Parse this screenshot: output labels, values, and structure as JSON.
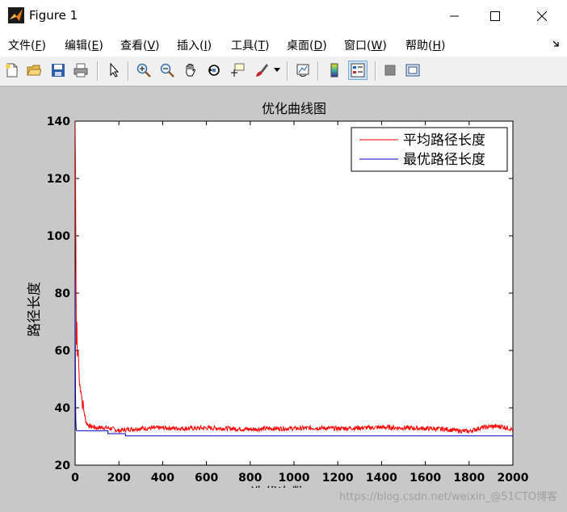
{
  "window": {
    "title": "Figure 1"
  },
  "menu": [
    {
      "label": "文件(",
      "key": "F",
      "end": ")"
    },
    {
      "label": "编辑(",
      "key": "E",
      "end": ")"
    },
    {
      "label": "查看(",
      "key": "V",
      "end": ")"
    },
    {
      "label": "插入(",
      "key": "I",
      "end": ")"
    },
    {
      "label": "工具(",
      "key": "T",
      "end": ")"
    },
    {
      "label": "桌面(",
      "key": "D",
      "end": ")"
    },
    {
      "label": "窗口(",
      "key": "W",
      "end": ")"
    },
    {
      "label": "帮助(",
      "key": "H",
      "end": ")"
    }
  ],
  "toolbar_icons": [
    "new-figure-icon",
    "open-file-icon",
    "save-icon",
    "print-icon",
    "pointer-icon",
    "zoom-in-icon",
    "zoom-out-icon",
    "pan-hand-icon",
    "rotate-3d-icon",
    "data-cursor-icon",
    "brush-icon",
    "link-plot-icon",
    "colorbar-icon",
    "legend-icon",
    "hide-plot-tools-icon",
    "show-plot-tools-icon"
  ],
  "watermark": "https://blog.csdn.net/weixin_@51CTO博客",
  "colors": {
    "avg": "#ff0000",
    "best": "#0000cc",
    "axes_bg": "#ffffff",
    "figure_bg": "#c8c8c8"
  },
  "chart_data": {
    "type": "line",
    "title": "优化曲线图",
    "xlabel": "迭代次数",
    "ylabel": "路径长度",
    "xlim": [
      0,
      2000
    ],
    "ylim": [
      20,
      140
    ],
    "xticks": [
      0,
      200,
      400,
      600,
      800,
      1000,
      1200,
      1400,
      1600,
      1800,
      2000
    ],
    "yticks": [
      20,
      40,
      60,
      80,
      100,
      120,
      140
    ],
    "legend_position": "top-right",
    "grid": false,
    "series": [
      {
        "name": "平均路径长度",
        "color": "#ff0000",
        "x": [
          0,
          2,
          4,
          6,
          8,
          10,
          14,
          18,
          22,
          26,
          30,
          35,
          40,
          45,
          50,
          60,
          70,
          80,
          100,
          120,
          150,
          180,
          200,
          240,
          300,
          400,
          500,
          600,
          700,
          800,
          900,
          1000,
          1100,
          1200,
          1300,
          1400,
          1500,
          1600,
          1700,
          1750,
          1800,
          1850,
          1900,
          1950,
          2000
        ],
        "y": [
          140,
          122,
          85,
          62,
          70,
          58,
          60,
          52,
          48,
          46,
          44,
          41,
          39,
          37,
          35,
          34,
          33.5,
          33.5,
          33,
          33.2,
          33,
          32.5,
          32,
          32.5,
          32.8,
          33,
          32.8,
          33,
          32.8,
          32.5,
          32.8,
          32.8,
          33,
          32.8,
          33,
          33.2,
          33,
          32.8,
          32.5,
          32,
          31.8,
          33,
          33.5,
          33.5,
          32.5
        ]
      },
      {
        "name": "最优路径长度",
        "color": "#0000cc",
        "x": [
          0,
          1,
          2,
          3,
          5,
          8,
          150,
          150,
          230,
          230,
          2000
        ],
        "y": [
          85,
          60,
          44,
          36,
          32.2,
          32,
          32,
          31,
          31,
          30.2,
          30.2
        ]
      }
    ]
  }
}
